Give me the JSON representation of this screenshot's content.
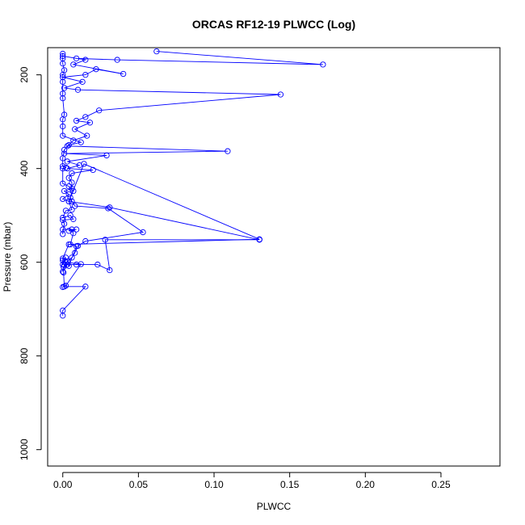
{
  "chart_data": {
    "type": "line",
    "title": "ORCAS RF12-19 PLWCC (Log)",
    "xlabel": "PLWCC",
    "ylabel": "Pressure (mbar)",
    "xlim": [
      -0.01,
      0.289
    ],
    "ylim": [
      1035,
      142
    ],
    "y_reversed": true,
    "x_ticks": [
      "0.00",
      "0.05",
      "0.10",
      "0.15",
      "0.20",
      "0.25"
    ],
    "x_tick_values": [
      0,
      0.05,
      0.1,
      0.15,
      0.2,
      0.25
    ],
    "y_ticks": [
      "200",
      "400",
      "600",
      "800",
      "1000"
    ],
    "y_tick_values": [
      200,
      400,
      600,
      800,
      1000
    ],
    "grid": false,
    "marker": "open-circle",
    "color": "#0000ff",
    "series": [
      {
        "points": [
          [
            0.0,
            714
          ],
          [
            0.0,
            703
          ],
          [
            0.015,
            652
          ],
          [
            0.001,
            652
          ],
          [
            0.0005,
            622
          ],
          [
            0.0005,
            610
          ],
          [
            0.001,
            606
          ],
          [
            0.003,
            605
          ],
          [
            0.009,
            605
          ],
          [
            0.023,
            605
          ],
          [
            0.031,
            617
          ],
          [
            0.028,
            552
          ],
          [
            0.13,
            552
          ],
          [
            0.031,
            483
          ],
          [
            0.004,
            470
          ],
          [
            0.0,
            465
          ],
          [
            0.004,
            455
          ],
          [
            0.001,
            448
          ],
          [
            0.006,
            443
          ],
          [
            0.006,
            430
          ],
          [
            0.004,
            420
          ],
          [
            0.006,
            410
          ],
          [
            0.02,
            403
          ],
          [
            0.003,
            400
          ],
          [
            0.011,
            393
          ],
          [
            0.003,
            385
          ],
          [
            0.029,
            372
          ],
          [
            0.001,
            368
          ],
          [
            0.109,
            363
          ],
          [
            0.003,
            352
          ],
          [
            0.007,
            340
          ],
          [
            0.016,
            330
          ],
          [
            0.008,
            316
          ],
          [
            0.018,
            302
          ],
          [
            0.009,
            298
          ],
          [
            0.015,
            290
          ],
          [
            0.024,
            276
          ],
          [
            0.144,
            242
          ],
          [
            0.01,
            232
          ],
          [
            0.001,
            228
          ],
          [
            0.013,
            215
          ],
          [
            0.0,
            205
          ],
          [
            0.015,
            200
          ],
          [
            0.022,
            188
          ],
          [
            0.04,
            198
          ],
          [
            0.007,
            178
          ],
          [
            0.015,
            168
          ],
          [
            0.0,
            160
          ],
          [
            0.009,
            165
          ],
          [
            0.036,
            168
          ],
          [
            0.172,
            178
          ],
          [
            0.062,
            150
          ]
        ]
      },
      {
        "points": [
          [
            0.0,
            620
          ],
          [
            0.003,
            598
          ],
          [
            0.006,
            590
          ],
          [
            0.008,
            580
          ],
          [
            0.01,
            565
          ],
          [
            0.015,
            555
          ],
          [
            0.053,
            536
          ],
          [
            0.03,
            485
          ],
          [
            0.008,
            480
          ],
          [
            0.006,
            470
          ],
          [
            0.005,
            462
          ],
          [
            0.007,
            448
          ],
          [
            0.004,
            438
          ],
          [
            0.0,
            432
          ],
          [
            0.0,
            400
          ],
          [
            0.002,
            398
          ],
          [
            0.0,
            395
          ],
          [
            0.0,
            378
          ],
          [
            0.001,
            360
          ],
          [
            0.004,
            350
          ],
          [
            0.012,
            344
          ],
          [
            0.0,
            330
          ],
          [
            0.0,
            310
          ],
          [
            0.0,
            295
          ],
          [
            0.001,
            285
          ],
          [
            0.0,
            250
          ],
          [
            0.0,
            240
          ],
          [
            0.0,
            215
          ],
          [
            0.0,
            200
          ],
          [
            0.001,
            190
          ],
          [
            0.0,
            176
          ],
          [
            0.0,
            165
          ],
          [
            0.0,
            155
          ]
        ]
      },
      {
        "points": [
          [
            0.0,
            653
          ],
          [
            0.002,
            650
          ],
          [
            0.012,
            604
          ],
          [
            0.002,
            600
          ],
          [
            0.004,
            608
          ],
          [
            0.009,
            566
          ],
          [
            0.005,
            562
          ],
          [
            0.007,
            538
          ],
          [
            0.006,
            530
          ],
          [
            0.004,
            533
          ],
          [
            0.009,
            530
          ],
          [
            0.0,
            530
          ],
          [
            0.0,
            540
          ],
          [
            0.001,
            518
          ],
          [
            0.0,
            510
          ],
          [
            0.007,
            508
          ],
          [
            0.005,
            500
          ],
          [
            0.0,
            505
          ],
          [
            0.002,
            490
          ],
          [
            0.006,
            488
          ],
          [
            0.004,
            470
          ],
          [
            0.014,
            390
          ],
          [
            0.13,
            551
          ],
          [
            0.004,
            562
          ],
          [
            0.0,
            592
          ],
          [
            0.0,
            605
          ],
          [
            0.002,
            590
          ],
          [
            0.0,
            596
          ]
        ]
      }
    ]
  }
}
